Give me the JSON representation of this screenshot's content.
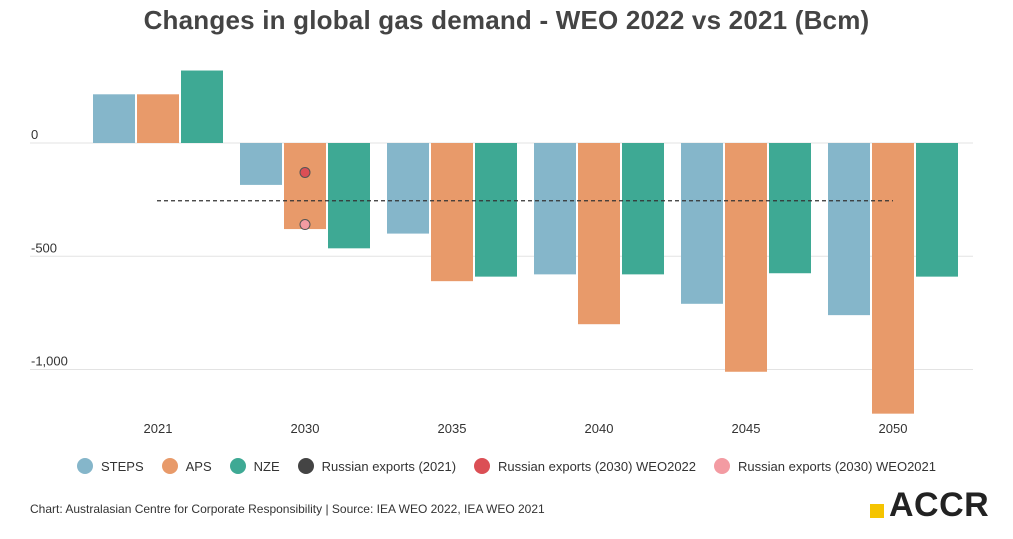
{
  "title": "Changes in global gas demand -  WEO 2022 vs 2021 (Bcm)",
  "colors": {
    "STEPS": "#85b6ca",
    "APS": "#e89a6a",
    "NZE": "#3ea994",
    "russian_2021": "#444444",
    "russian_2030_weo2022": "#db4f55",
    "russian_2030_weo2021": "#f39ba2",
    "grid": "#e3e3e3",
    "reference_line": "#333333"
  },
  "chart_data": {
    "type": "bar",
    "categories": [
      "2021",
      "2030",
      "2035",
      "2040",
      "2045",
      "2050"
    ],
    "series": [
      {
        "name": "STEPS",
        "values": [
          215,
          -185,
          -400,
          -580,
          -710,
          -760
        ]
      },
      {
        "name": "APS",
        "values": [
          215,
          -380,
          -610,
          -800,
          -1010,
          -1195
        ]
      },
      {
        "name": "NZE",
        "values": [
          320,
          -465,
          -590,
          -580,
          -575,
          -590
        ]
      }
    ],
    "markers": [
      {
        "name": "Russian exports (2030) WEO2022",
        "category": "2030",
        "value": -130
      },
      {
        "name": "Russian exports (2030) WEO2021",
        "category": "2030",
        "value": -360
      }
    ],
    "reference_line": {
      "name": "Russian exports (2021)",
      "value": -255
    },
    "yticks": [
      {
        "value": 0,
        "label": "0"
      },
      {
        "value": -500,
        "label": "-500"
      },
      {
        "value": -1000,
        "label": "-1,000"
      }
    ],
    "ylim": [
      -1195,
      380
    ],
    "grid": true,
    "legend_position": "bottom"
  },
  "legend": [
    {
      "label": "STEPS",
      "color": "#85b6ca"
    },
    {
      "label": "APS",
      "color": "#e89a6a"
    },
    {
      "label": "NZE",
      "color": "#3ea994"
    },
    {
      "label": "Russian exports (2021)",
      "color": "#444444"
    },
    {
      "label": "Russian exports (2030) WEO2022",
      "color": "#db4f55"
    },
    {
      "label": "Russian exports (2030) WEO2021",
      "color": "#f39ba2"
    }
  ],
  "source": "Chart: Australasian Centre for Corporate Responsibility | Source: IEA WEO 2022, IEA WEO 2021",
  "logo": "ACCR"
}
